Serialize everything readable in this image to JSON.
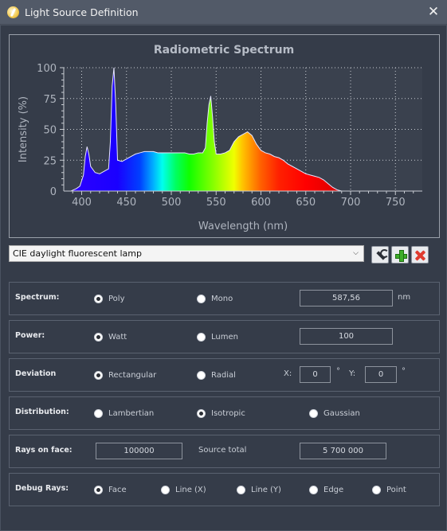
{
  "window": {
    "title": "Light Source Definition",
    "icon": "light-bulb-icon"
  },
  "chart_data": {
    "type": "area",
    "title": "Radiometric Spectrum",
    "xlabel": "Wavelength (nm)",
    "ylabel": "Intensity (%)",
    "xlim": [
      380,
      780
    ],
    "ylim": [
      0,
      100
    ],
    "xticks": [
      400,
      450,
      500,
      550,
      600,
      650,
      700,
      750
    ],
    "yticks": [
      0,
      25,
      50,
      75,
      100
    ],
    "grid": true,
    "fill": "visible-spectrum",
    "x": [
      380,
      385,
      388,
      391,
      394,
      398,
      402,
      404,
      406,
      408,
      410,
      415,
      420,
      425,
      430,
      432,
      434,
      436,
      438,
      440,
      445,
      450,
      455,
      460,
      465,
      470,
      475,
      480,
      485,
      490,
      495,
      500,
      505,
      510,
      515,
      520,
      525,
      530,
      535,
      538,
      540,
      542,
      544,
      546,
      548,
      550,
      555,
      560,
      565,
      570,
      575,
      580,
      585,
      590,
      595,
      600,
      605,
      610,
      615,
      620,
      625,
      630,
      635,
      640,
      645,
      650,
      655,
      660,
      665,
      670,
      675,
      680,
      685,
      690,
      780
    ],
    "y": [
      0,
      0,
      0,
      1,
      2,
      4,
      13,
      28,
      36,
      30,
      20,
      15,
      14,
      16,
      18,
      40,
      85,
      100,
      70,
      25,
      24,
      26,
      28,
      30,
      31,
      32,
      32,
      32,
      31,
      31,
      31,
      31,
      31,
      31,
      31,
      30,
      30,
      31,
      31,
      35,
      55,
      70,
      77,
      60,
      40,
      30,
      30,
      31,
      33,
      40,
      44,
      46,
      48,
      45,
      38,
      33,
      31,
      30,
      28,
      27,
      25,
      22,
      20,
      18,
      16,
      14,
      13,
      12,
      11,
      9,
      6,
      3,
      1,
      0,
      0
    ]
  },
  "preset": {
    "selected": "CIE daylight fluorescent lamp"
  },
  "toolbar": {
    "edit_icon": "wrench-icon",
    "add_icon": "plus-icon",
    "delete_icon": "cross-icon"
  },
  "spectrum": {
    "label": "Spectrum:",
    "options": [
      "Poly",
      "Mono"
    ],
    "selected": "Poly",
    "value": "587,56",
    "unit": "nm"
  },
  "power": {
    "label": "Power:",
    "options": [
      "Watt",
      "Lumen"
    ],
    "selected": "Watt",
    "value": "100"
  },
  "deviation": {
    "label": "Deviation",
    "options": [
      "Rectangular",
      "Radial"
    ],
    "selected": "Rectangular",
    "x_label": "X:",
    "x_value": "0",
    "y_label": "Y:",
    "y_value": "0",
    "unit": "°"
  },
  "distribution": {
    "label": "Distribution:",
    "options": [
      "Lambertian",
      "Isotropic",
      "Gaussian"
    ],
    "selected": "Isotropic"
  },
  "rays": {
    "label": "Rays on face:",
    "value": "100000",
    "total_label": "Source total",
    "total_value": "5 700 000"
  },
  "debug": {
    "label": "Debug Rays:",
    "options": [
      "Face",
      "Line (X)",
      "Line (Y)",
      "Edge",
      "Point"
    ],
    "selected": "Face"
  }
}
